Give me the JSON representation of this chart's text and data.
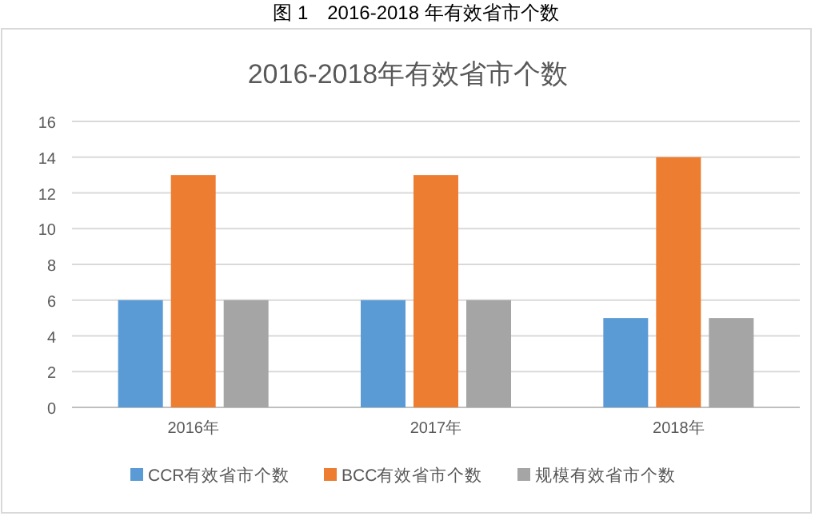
{
  "chart_data": {
    "type": "bar",
    "title": "2016-2018年有效省市个数",
    "annotations": [
      "图 1　2016-2018 年有效省市个数"
    ],
    "categories": [
      "2016年",
      "2017年",
      "2018年"
    ],
    "series": [
      {
        "name": "CCR有效省市个数",
        "color": "#5b9bd5",
        "values": [
          6,
          6,
          5
        ]
      },
      {
        "name": "BCC有效省市个数",
        "color": "#ed7d31",
        "values": [
          13,
          13,
          14
        ]
      },
      {
        "name": "规模有效省市个数",
        "color": "#a5a5a5",
        "values": [
          6,
          6,
          5
        ]
      }
    ],
    "ylim": [
      0,
      16
    ],
    "yticks": [
      0,
      2,
      4,
      6,
      8,
      10,
      12,
      14,
      16
    ],
    "grid": "y",
    "legend": "bottom"
  }
}
